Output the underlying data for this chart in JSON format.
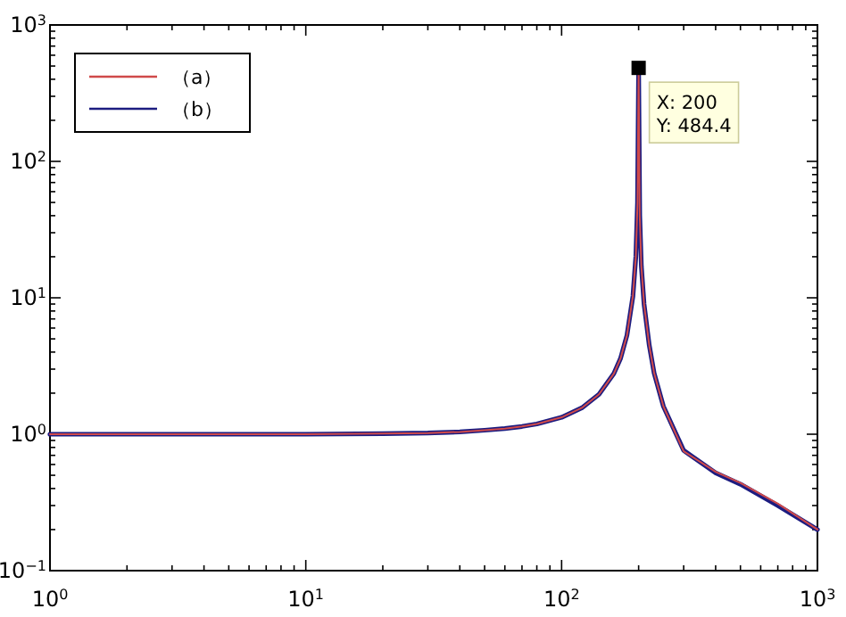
{
  "chart_data": {
    "type": "line",
    "log": "xy",
    "grid": false,
    "legend": "top left",
    "x": [
      1,
      2,
      5,
      10,
      20,
      30,
      40,
      50,
      60,
      70,
      80,
      100,
      120,
      140,
      160,
      170,
      180,
      190,
      195,
      198,
      200,
      202,
      205,
      210,
      220,
      230,
      250,
      300,
      400,
      500,
      700,
      1000
    ],
    "series": [
      {
        "name": "（a）",
        "color": "#d04a4a",
        "values": [
          1,
          1,
          1,
          1,
          1.01,
          1.02,
          1.04,
          1.07,
          1.1,
          1.14,
          1.19,
          1.33,
          1.56,
          1.96,
          2.78,
          3.6,
          5.3,
          10.3,
          20,
          50,
          484.4,
          40,
          17,
          9,
          4.5,
          2.8,
          1.6,
          0.75,
          0.53,
          0.44,
          0.31,
          0.2
        ]
      },
      {
        "name": "（b）",
        "color": "#1c1c80",
        "values": [
          1,
          1,
          1,
          1,
          1.01,
          1.02,
          1.04,
          1.07,
          1.1,
          1.14,
          1.19,
          1.33,
          1.56,
          1.96,
          2.78,
          3.6,
          5.3,
          10.3,
          20,
          50,
          484.4,
          40,
          17,
          9,
          4.5,
          2.8,
          1.6,
          0.76,
          0.52,
          0.43,
          0.3,
          0.2
        ]
      }
    ],
    "xlim": [
      1,
      1000
    ],
    "ylim": [
      0.1,
      1000
    ],
    "xticks": [
      {
        "value": 1,
        "label": "10$^{0}$"
      },
      {
        "value": 10,
        "label": "10$^{1}$"
      },
      {
        "value": 100,
        "label": "10$^{2}$"
      },
      {
        "value": 1000,
        "label": "10$^{3}$"
      }
    ],
    "yticks": [
      {
        "value": 0.1,
        "label": "10$^{−1}$"
      },
      {
        "value": 1,
        "label": "10$^{0}$"
      },
      {
        "value": 10,
        "label": "10$^{1}$"
      },
      {
        "value": 100,
        "label": "10$^{2}$"
      },
      {
        "value": 1000,
        "label": "10$^{3}$"
      }
    ],
    "annotations": [
      {
        "text": "X: 200\nY: 484.4",
        "x": 200,
        "y": 484.4
      }
    ]
  }
}
